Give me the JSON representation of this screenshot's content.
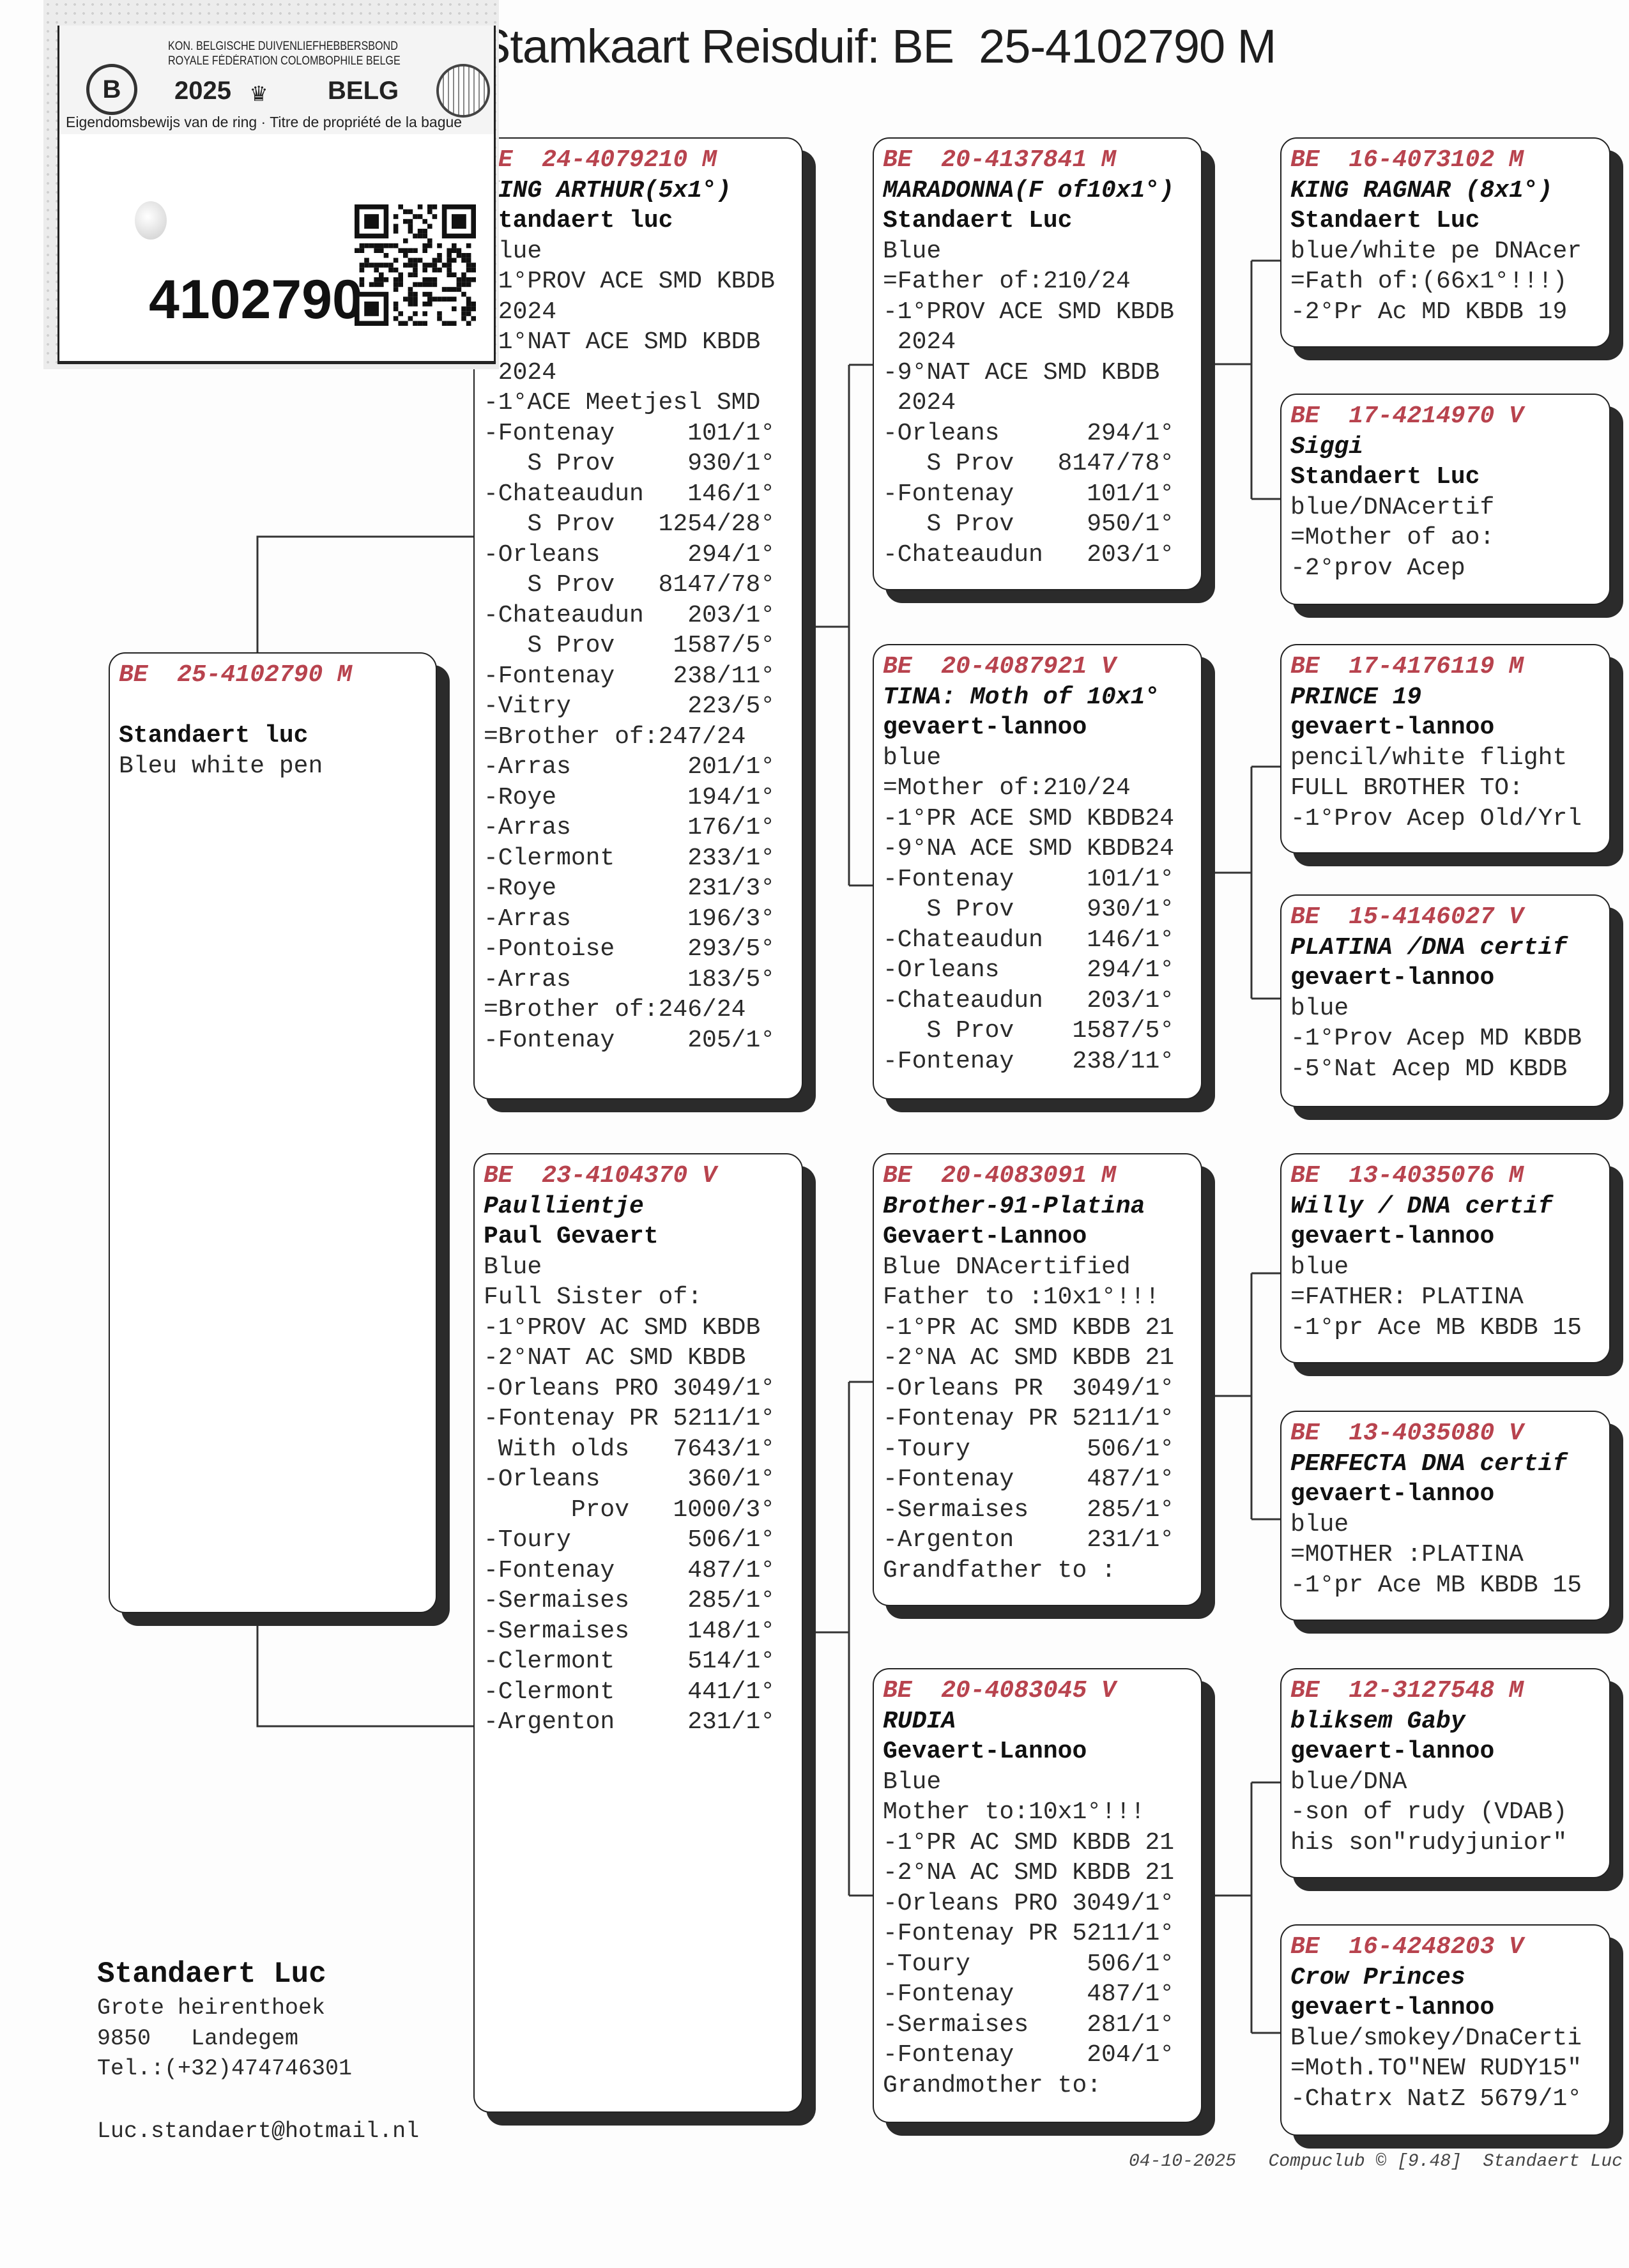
{
  "title": "Stamkaart Reisduif: BE  25-4102790 M",
  "ring_card": {
    "org_nl": "KON. BELGISCHE DUIVENLIEFHEBBERSBOND",
    "org_fr": "ROYALE FÉDÉRATION COLOMBOPHILE BELGE",
    "year": "2025",
    "country": "BELG",
    "deed": "Eigendomsbewijs van de ring · Titre de propriété de la bague",
    "ring_number": "4102790",
    "logo_letter": "B",
    "icons": [
      "kbdb-logo",
      "crown-icon",
      "pigeon-globe-logo",
      "qr-code"
    ]
  },
  "pedigree": [
    {
      "role": "subject",
      "ring": "BE  25-4102790 M",
      "name": "",
      "breeder": "Standaert luc",
      "lines": [
        "Bleu white pen"
      ]
    },
    {
      "role": "sire",
      "ring": "BE  24-4079210 M",
      "name": "KING ARTHUR(5x1°)",
      "breeder": "Standaert luc",
      "lines": [
        "Blue",
        "-1°PROV ACE SMD KBDB",
        " 2024",
        "-1°NAT ACE SMD KBDB",
        " 2024",
        "-1°ACE Meetjesl SMD",
        [
          "-Fontenay",
          "101/1°"
        ],
        [
          "   S Prov",
          "930/1°"
        ],
        [
          "-Chateaudun",
          "146/1°"
        ],
        [
          "   S Prov",
          "1254/28°"
        ],
        [
          "-Orleans",
          "294/1°"
        ],
        [
          "   S Prov",
          "8147/78°"
        ],
        [
          "-Chateaudun",
          "203/1°"
        ],
        [
          "   S Prov",
          "1587/5°"
        ],
        [
          "-Fontenay",
          "238/11°"
        ],
        [
          "-Vitry",
          "223/5°"
        ],
        "=Brother of:247/24",
        [
          "-Arras",
          "201/1°"
        ],
        [
          "-Roye",
          "194/1°"
        ],
        [
          "-Arras",
          "176/1°"
        ],
        [
          "-Clermont",
          "233/1°"
        ],
        [
          "-Roye",
          "231/3°"
        ],
        [
          "-Arras",
          "196/3°"
        ],
        [
          "-Pontoise",
          "293/5°"
        ],
        [
          "-Arras",
          "183/5°"
        ],
        "=Brother of:246/24",
        [
          "-Fontenay",
          "205/1°"
        ]
      ]
    },
    {
      "role": "dam",
      "ring": "BE  23-4104370 V",
      "name": "Paullientje",
      "breeder": "Paul Gevaert",
      "lines": [
        "Blue",
        "Full Sister of:",
        "-1°PROV AC SMD KBDB",
        "-2°NAT AC SMD KBDB",
        "-Orleans PRO 3049/1°",
        "-Fontenay PR 5211/1°",
        [
          " With olds",
          "7643/1°"
        ],
        [
          "-Orleans",
          "360/1°"
        ],
        [
          "      Prov",
          "1000/3°"
        ],
        [
          "-Toury",
          "506/1°"
        ],
        [
          "-Fontenay",
          "487/1°"
        ],
        [
          "-Sermaises",
          "285/1°"
        ],
        [
          "-Sermaises",
          "148/1°"
        ],
        [
          "-Clermont",
          "514/1°"
        ],
        [
          "-Clermont",
          "441/1°"
        ],
        [
          "-Argenton",
          "231/1°"
        ]
      ]
    },
    {
      "role": "sire-sire",
      "ring": "BE  20-4137841 M",
      "name": "MARADONNA(F of10x1°)",
      "breeder": "Standaert Luc",
      "lines": [
        "Blue",
        "=Father of:210/24",
        "-1°PROV ACE SMD KBDB",
        " 2024",
        "-9°NAT ACE SMD KBDB",
        " 2024",
        [
          "-Orleans",
          "294/1°"
        ],
        [
          "   S Prov",
          "8147/78°"
        ],
        [
          "-Fontenay",
          "101/1°"
        ],
        [
          "   S Prov",
          "950/1°"
        ],
        [
          "-Chateaudun",
          "203/1°"
        ]
      ]
    },
    {
      "role": "sire-dam",
      "ring": "BE  20-4087921 V",
      "name": "TINA: Moth of 10x1°",
      "breeder": "gevaert-lannoo",
      "lines": [
        "blue",
        "=Mother of:210/24",
        "-1°PR ACE SMD KBDB24",
        "-9°NA ACE SMD KBDB24",
        [
          "-Fontenay",
          "101/1°"
        ],
        [
          "   S Prov",
          "930/1°"
        ],
        [
          "-Chateaudun",
          "146/1°"
        ],
        [
          "-Orleans",
          "294/1°"
        ],
        [
          "-Chateaudun",
          "203/1°"
        ],
        [
          "   S Prov",
          "1587/5°"
        ],
        [
          "-Fontenay",
          "238/11°"
        ]
      ]
    },
    {
      "role": "dam-sire",
      "ring": "BE  20-4083091 M",
      "name": "Brother-91-Platina",
      "breeder": "Gevaert-Lannoo",
      "lines": [
        "Blue DNAcertified",
        "Father to :10x1°!!!",
        "-1°PR AC SMD KBDB 21",
        "-2°NA AC SMD KBDB 21",
        [
          "-Orleans PR",
          "3049/1°"
        ],
        [
          "-Fontenay PR",
          "5211/1°"
        ],
        [
          "-Toury",
          "506/1°"
        ],
        [
          "-Fontenay",
          "487/1°"
        ],
        [
          "-Sermaises",
          "285/1°"
        ],
        [
          "-Argenton",
          "231/1°"
        ],
        "Grandfather to :"
      ]
    },
    {
      "role": "dam-dam",
      "ring": "BE  20-4083045 V",
      "name": "RUDIA",
      "breeder": "Gevaert-Lannoo",
      "lines": [
        "Blue",
        "Mother to:10x1°!!!",
        "-1°PR AC SMD KBDB 21",
        "-2°NA AC SMD KBDB 21",
        "-Orleans PRO 3049/1°",
        "-Fontenay PR 5211/1°",
        [
          "-Toury",
          "506/1°"
        ],
        [
          "-Fontenay",
          "487/1°"
        ],
        [
          "-Sermaises",
          "281/1°"
        ],
        [
          "-Fontenay",
          "204/1°"
        ],
        "Grandmother to:"
      ]
    },
    {
      "role": "ss-sire",
      "ring": "BE  16-4073102 M",
      "name": "KING RAGNAR (8x1°)",
      "breeder": "Standaert Luc",
      "lines": [
        "blue/white pe DNAcer",
        "=Fath of:(66x1°!!!)",
        "-2°Pr Ac MD KBDB 19"
      ]
    },
    {
      "role": "ss-dam",
      "ring": "BE  17-4214970 V",
      "name": "Siggi",
      "breeder": "Standaert Luc",
      "lines": [
        "blue/DNAcertif",
        "=Mother of ao:",
        "-2°prov Acep"
      ]
    },
    {
      "role": "sd-sire",
      "ring": "BE  17-4176119 M",
      "name": "PRINCE 19",
      "breeder": "gevaert-lannoo",
      "lines": [
        "pencil/white flight",
        "FULL BROTHER TO:",
        "-1°Prov Acep Old/Yrl"
      ]
    },
    {
      "role": "sd-dam",
      "ring": "BE  15-4146027 V",
      "name": "PLATINA /DNA certif",
      "breeder": "gevaert-lannoo",
      "lines": [
        "blue",
        "-1°Prov Acep MD KBDB",
        "-5°Nat Acep MD KBDB"
      ]
    },
    {
      "role": "ds-sire",
      "ring": "BE  13-4035076 M",
      "name": "Willy / DNA certif",
      "breeder": "gevaert-lannoo",
      "lines": [
        "blue",
        "=FATHER: PLATINA",
        "-1°pr Ace MB KBDB 15"
      ]
    },
    {
      "role": "ds-dam",
      "ring": "BE  13-4035080 V",
      "name": "PERFECTA DNA certif",
      "breeder": "gevaert-lannoo",
      "lines": [
        "blue",
        "=MOTHER :PLATINA",
        "-1°pr Ace MB KBDB 15"
      ]
    },
    {
      "role": "dd-sire",
      "ring": "BE  12-3127548 M",
      "name": "bliksem Gaby",
      "breeder": "gevaert-lannoo",
      "lines": [
        "blue/DNA",
        "-son of rudy (VDAB)",
        "his son\"rudyjunior\""
      ]
    },
    {
      "role": "dd-dam",
      "ring": "BE  16-4248203 V",
      "name": "Crow Princes",
      "breeder": "gevaert-lannoo",
      "lines": [
        "Blue/smokey/DnaCerti",
        "=Moth.TO\"NEW RUDY15\"",
        "-Chatrx NatZ 5679/1°"
      ]
    }
  ],
  "owner": {
    "name": "Standaert Luc",
    "street": "Grote heirenthoek",
    "city": "9850   Landegem",
    "phone": "Tel.:(+32)474746301",
    "email": "Luc.standaert@hotmail.nl"
  },
  "footer": {
    "date": "04-10-2025",
    "software": "Compuclub © [9.48]",
    "user": "Standaert Luc"
  },
  "colors": {
    "ring_header": "#b8434e",
    "shadow": "#2b2b2b"
  }
}
